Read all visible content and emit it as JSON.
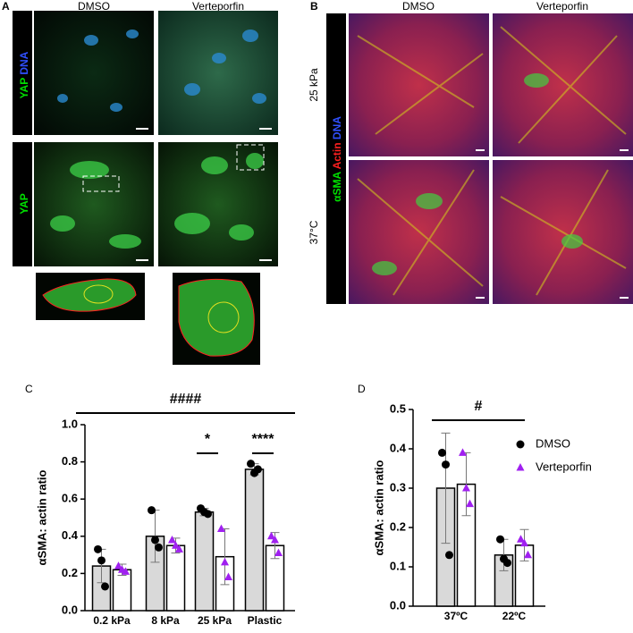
{
  "panel_a": {
    "label": "A",
    "col1": "DMSO",
    "col2": "Verteporfin",
    "row1_yap": "YAP",
    "row1_dna": "DNA",
    "row2": "YAP"
  },
  "panel_b": {
    "label": "B",
    "col1": "DMSO",
    "col2": "Verteporfin",
    "row1": "25 kPa",
    "row2": "37°C",
    "stain_sma": "αSMA",
    "stain_actin": "Actin",
    "stain_dna": "DNA"
  },
  "chart_data": [
    {
      "type": "bar",
      "title": "C",
      "y_label": "αSMA: actin ratio",
      "categories": [
        "0.2 kPa",
        "8 kPa",
        "25 kPa",
        "Plastic"
      ],
      "series": [
        {
          "name": "DMSO",
          "color": "#d9d9d9",
          "marker_color": "#000000",
          "values": [
            0.24,
            0.4,
            0.53,
            0.76
          ],
          "errors": [
            0.09,
            0.14,
            0.02,
            0.03
          ],
          "points": [
            [
              0.33,
              0.27,
              0.13
            ],
            [
              0.54,
              0.38,
              0.34
            ],
            [
              0.55,
              0.53,
              0.52
            ],
            [
              0.79,
              0.74,
              0.76
            ]
          ]
        },
        {
          "name": "Verteporfin",
          "color": "#ffffff",
          "marker_color": "#a020f0",
          "values": [
            0.22,
            0.35,
            0.29,
            0.35
          ],
          "errors": [
            0.03,
            0.04,
            0.15,
            0.07
          ],
          "points": [
            [
              0.24,
              0.22,
              0.21
            ],
            [
              0.38,
              0.35,
              0.33
            ],
            [
              0.44,
              0.26,
              0.18
            ],
            [
              0.4,
              0.38,
              0.31
            ]
          ]
        }
      ],
      "ylim": [
        0,
        1.0
      ],
      "yticks": [
        {
          "value": 0,
          "label": "0.0"
        },
        0.2,
        0.4,
        0.6,
        0.8,
        {
          "value": 1,
          "label": "1.0"
        }
      ],
      "annotations": [
        "####",
        "*",
        "****"
      ],
      "legend": false
    },
    {
      "type": "bar",
      "title": "D",
      "y_label": "αSMA: actin ratio",
      "categories": [
        "37ºC",
        "22ºC"
      ],
      "series": [
        {
          "name": "DMSO",
          "color": "#d9d9d9",
          "marker_color": "#000000",
          "values": [
            0.3,
            0.13
          ],
          "errors": [
            0.14,
            0.04
          ],
          "points": [
            [
              0.39,
              0.36,
              0.13
            ],
            [
              0.17,
              0.12,
              0.11
            ]
          ]
        },
        {
          "name": "Verteporfin",
          "color": "#ffffff",
          "marker_color": "#a020f0",
          "values": [
            0.31,
            0.155
          ],
          "errors": [
            0.08,
            0.04
          ],
          "points": [
            [
              0.39,
              0.3,
              0.26
            ],
            [
              0.17,
              0.16,
              0.13
            ]
          ]
        }
      ],
      "ylim": [
        0,
        0.5
      ],
      "yticks": [
        {
          "value": 0,
          "label": "0.0"
        },
        0.1,
        0.2,
        0.3,
        0.4,
        0.5
      ],
      "annotations": [
        "#"
      ],
      "legend": true
    }
  ]
}
